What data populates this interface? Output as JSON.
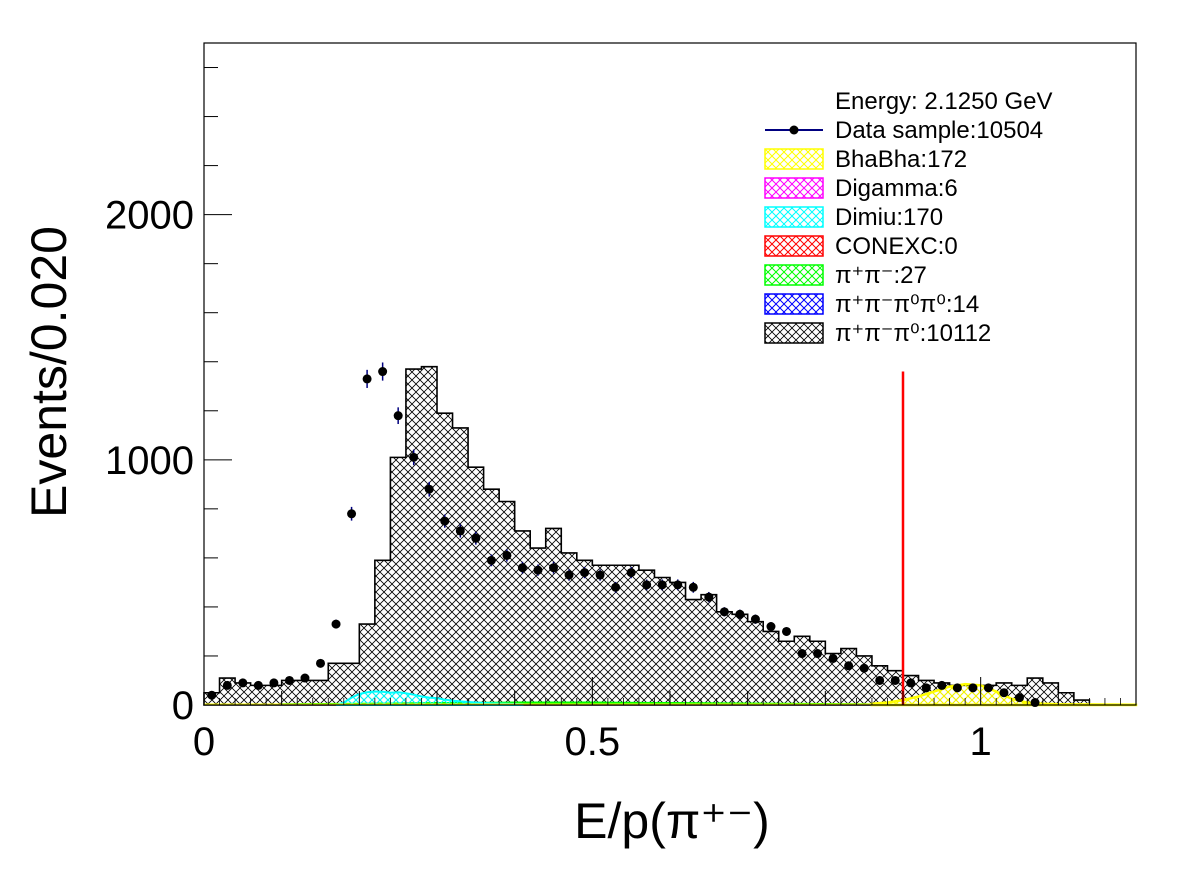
{
  "chart_data": {
    "type": "histogram",
    "xlabel": "E/p(π⁺⁻)",
    "ylabel": "Events/0.020",
    "xlim": [
      0,
      1.2
    ],
    "ylim": [
      0,
      2700
    ],
    "bin_width": 0.02,
    "x_ticks": [
      {
        "value": 0,
        "label": "0"
      },
      {
        "value": 0.5,
        "label": "0.5"
      },
      {
        "value": 1,
        "label": "1"
      }
    ],
    "y_ticks": [
      {
        "value": 0,
        "label": "0"
      },
      {
        "value": 1000,
        "label": "1000"
      },
      {
        "value": 2000,
        "label": "2000"
      }
    ],
    "y_minor_step": 200,
    "legend": {
      "placement": "top-right",
      "header": "Energy: 2.1250 GeV",
      "entries": [
        {
          "key": "data",
          "label": "Data sample:10504",
          "color": "#000080",
          "kind": "marker"
        },
        {
          "key": "bhabha",
          "label": "BhaBha:172",
          "color": "#ffff00",
          "kind": "fill"
        },
        {
          "key": "digamma",
          "label": "Digamma:6",
          "color": "#ff00ff",
          "kind": "fill"
        },
        {
          "key": "dimiu",
          "label": "Dimiu:170",
          "color": "#00ffff",
          "kind": "fill"
        },
        {
          "key": "conexc",
          "label": "CONEXC:0",
          "color": "#ff0000",
          "kind": "fill"
        },
        {
          "key": "pipi",
          "label": "π⁺π⁻:27",
          "color": "#00ff00",
          "kind": "fill"
        },
        {
          "key": "pipipi0pi0",
          "label": "π⁺π⁻π⁰π⁰:14",
          "color": "#0000ff",
          "kind": "fill"
        },
        {
          "key": "pipipi0",
          "label": "π⁺π⁻π⁰:10112",
          "color": "#000000",
          "kind": "fill"
        }
      ]
    },
    "cut_line": {
      "x": 0.9,
      "y_top": 1360,
      "color": "#ff0000"
    },
    "series": [
      {
        "key": "pipipi0",
        "bin_edges_start": 0.0,
        "values": [
          50,
          110,
          90,
          80,
          80,
          100,
          100,
          100,
          170,
          170,
          330,
          590,
          1010,
          1370,
          1380,
          1190,
          1130,
          970,
          880,
          830,
          710,
          640,
          720,
          620,
          590,
          570,
          570,
          570,
          550,
          520,
          500,
          430,
          450,
          380,
          370,
          340,
          300,
          260,
          280,
          260,
          210,
          230,
          200,
          160,
          140,
          120,
          100,
          90,
          80,
          80,
          80,
          90,
          80,
          110,
          90,
          50,
          20,
          0,
          0,
          0
        ]
      },
      {
        "key": "dimiu",
        "bin_edges_start": 0.0,
        "values": [
          0,
          0,
          0,
          0,
          0,
          0,
          0,
          0,
          0,
          0,
          0,
          0,
          0,
          5,
          5,
          5,
          6,
          5,
          4,
          3,
          2,
          2,
          1,
          1,
          1,
          1,
          1,
          1,
          1,
          1,
          1,
          1,
          1,
          1,
          0,
          0,
          0,
          0,
          0,
          0,
          0,
          0,
          0,
          0,
          0,
          0,
          0,
          0,
          0,
          0,
          0,
          0,
          0,
          0,
          0,
          0,
          0,
          0,
          0,
          0
        ]
      },
      {
        "key": "bhabha",
        "bin_edges_start": 0.0,
        "values": [
          0,
          0,
          0,
          0,
          0,
          0,
          0,
          0,
          0,
          0,
          0,
          0,
          0,
          0,
          0,
          0,
          0,
          0,
          0,
          0,
          0,
          0,
          0,
          0,
          0,
          0,
          0,
          0,
          0,
          0,
          0,
          0,
          0,
          0,
          0,
          0,
          0,
          0,
          0,
          0,
          0,
          0,
          0,
          0,
          0,
          0,
          0,
          0,
          0,
          0,
          0,
          0,
          0,
          0,
          0,
          0,
          0,
          0,
          0,
          0
        ]
      }
    ],
    "dimiu_curve": {
      "x": [
        0.17,
        0.18,
        0.19,
        0.2,
        0.21,
        0.22,
        0.23,
        0.24,
        0.25,
        0.26,
        0.27,
        0.28,
        0.29,
        0.3,
        0.31,
        0.32,
        0.33,
        0.34,
        0.35,
        0.36,
        0.37,
        0.38,
        0.39,
        0.4,
        0.41
      ],
      "y": [
        0,
        10,
        30,
        45,
        52,
        55,
        54,
        50,
        52,
        48,
        42,
        35,
        30,
        28,
        22,
        18,
        15,
        12,
        10,
        8,
        7,
        6,
        5,
        4,
        3
      ]
    },
    "bhabha_curve": {
      "x": [
        0.86,
        0.88,
        0.9,
        0.92,
        0.94,
        0.96,
        0.98,
        1.0,
        1.02,
        1.04,
        1.06,
        1.08,
        1.1,
        1.2
      ],
      "y": [
        5,
        10,
        20,
        35,
        55,
        75,
        85,
        80,
        55,
        25,
        10,
        5,
        3,
        1
      ]
    },
    "pipi_curve": {
      "x": [
        0.1,
        0.2,
        0.3,
        0.4,
        0.5,
        0.6,
        0.7,
        0.8,
        0.85,
        0.9
      ],
      "y": [
        3,
        5,
        8,
        10,
        10,
        8,
        6,
        4,
        3,
        1
      ]
    },
    "data_points": {
      "x": [
        0.01,
        0.03,
        0.05,
        0.07,
        0.09,
        0.11,
        0.13,
        0.15,
        0.17,
        0.19,
        0.21,
        0.23,
        0.25,
        0.27,
        0.29,
        0.31,
        0.33,
        0.35,
        0.37,
        0.39,
        0.41,
        0.43,
        0.45,
        0.47,
        0.49,
        0.51,
        0.53,
        0.55,
        0.57,
        0.59,
        0.61,
        0.63,
        0.65,
        0.67,
        0.69,
        0.71,
        0.73,
        0.75,
        0.77,
        0.79,
        0.81,
        0.83,
        0.85,
        0.87,
        0.89,
        0.91,
        0.93,
        0.95,
        0.97,
        0.99,
        1.01,
        1.03,
        1.05,
        1.07
      ],
      "y": [
        40,
        80,
        90,
        80,
        90,
        100,
        110,
        170,
        330,
        780,
        1330,
        1360,
        1180,
        1010,
        880,
        750,
        710,
        680,
        590,
        610,
        560,
        550,
        560,
        530,
        540,
        530,
        480,
        540,
        490,
        490,
        490,
        480,
        440,
        380,
        370,
        350,
        320,
        300,
        210,
        210,
        190,
        160,
        150,
        100,
        100,
        90,
        70,
        80,
        70,
        70,
        70,
        50,
        30,
        10
      ],
      "err": [
        7,
        9,
        10,
        9,
        10,
        10,
        11,
        13,
        18,
        28,
        37,
        37,
        34,
        32,
        30,
        27,
        27,
        26,
        24,
        25,
        24,
        23,
        24,
        23,
        23,
        23,
        22,
        23,
        22,
        22,
        22,
        22,
        21,
        19,
        19,
        19,
        18,
        17,
        14,
        14,
        14,
        13,
        12,
        10,
        10,
        9,
        8,
        9,
        8,
        8,
        8,
        7,
        5,
        3
      ]
    }
  }
}
